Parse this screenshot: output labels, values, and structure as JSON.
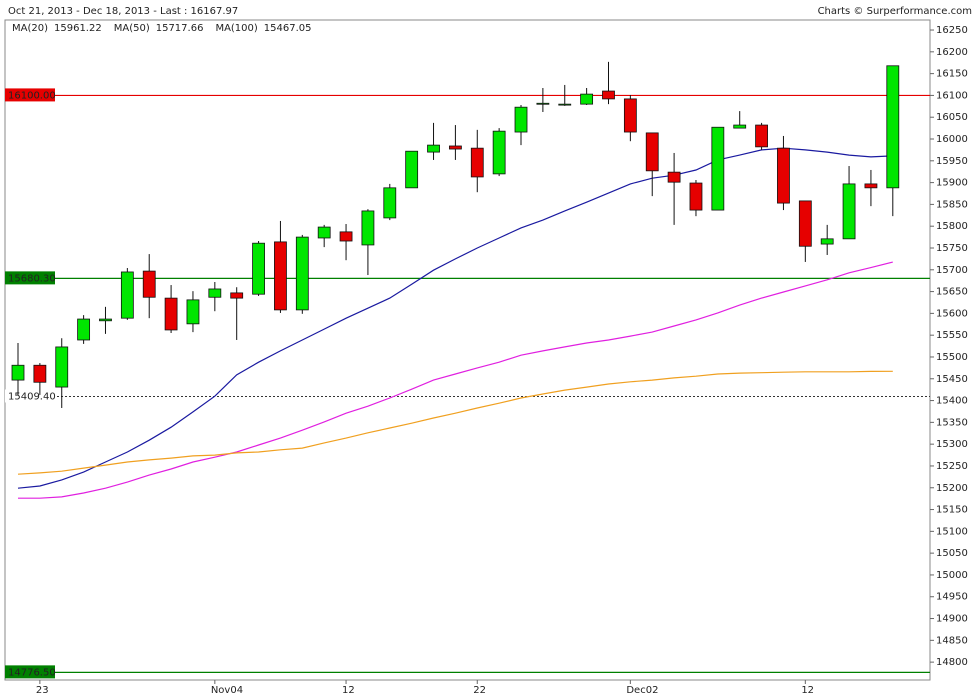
{
  "chart_data": {
    "type": "candlestick",
    "title": "Oct 21, 2013 - Dec 18, 2013 - Last : 16167.97",
    "subtitle": "Charts © Surperformance.com",
    "categories": [
      null,
      "23",
      null,
      null,
      null,
      null,
      null,
      null,
      null,
      "Nov04",
      null,
      null,
      null,
      null,
      null,
      "12",
      null,
      null,
      null,
      null,
      null,
      "22",
      null,
      null,
      null,
      null,
      null,
      null,
      "Dec02",
      null,
      null,
      null,
      null,
      null,
      null,
      null,
      "12",
      null,
      null,
      null,
      null
    ],
    "open": [
      15447,
      15481,
      15431,
      15539,
      15583,
      15589,
      15697,
      15635,
      15576,
      15637,
      15647,
      15644,
      15764,
      15608,
      15773,
      15787,
      15757,
      15819,
      15888,
      15970,
      15984,
      15979,
      15920,
      16016,
      16080,
      16078,
      16080,
      16110,
      16092,
      16014,
      15924,
      15899,
      15837,
      16025,
      16032,
      15979,
      15858,
      15759,
      15771,
      15897,
      15888
    ],
    "high": [
      15532,
      15486,
      15543,
      15596,
      15615,
      15704,
      15736,
      15665,
      15651,
      15672,
      15660,
      15766,
      15812,
      15780,
      15803,
      15805,
      15839,
      15897,
      15972,
      16037,
      16032,
      16021,
      16025,
      16078,
      16117,
      16124,
      16117,
      16177,
      16101,
      16014,
      15968,
      15906,
      16027,
      16064,
      16037,
      16007,
      15858,
      15803,
      15938,
      15929,
      16167.97
    ],
    "low": [
      15413,
      15413,
      15383,
      15530,
      15553,
      15585,
      15589,
      15555,
      15557,
      15605,
      15539,
      15640,
      15601,
      15599,
      15752,
      15722,
      15688,
      15814,
      15888,
      15952,
      15952,
      15878,
      15915,
      15986,
      16062,
      16076,
      16078,
      16080,
      15995,
      15869,
      15803,
      15823,
      15837,
      16025,
      15975,
      15837,
      15718,
      15734,
      15771,
      15846,
      15823
    ],
    "close": [
      15481,
      15442,
      15523,
      15587,
      15587,
      15695,
      15637,
      15562,
      15631,
      15656,
      15635,
      15761,
      15608,
      15775,
      15798,
      15766,
      15835,
      15888,
      15972,
      15986,
      15977,
      15913,
      16018,
      16073,
      16082,
      16080,
      16103,
      16092,
      16016,
      15927,
      15901,
      15837,
      16027,
      16032,
      15982,
      15853,
      15754,
      15771,
      15897,
      15888,
      16167.97
    ],
    "up_color": "#00e600",
    "down_color": "#e60000",
    "series": [
      {
        "name": "MA(20)",
        "color": "#1a1aa0",
        "values": [
          15199,
          15204,
          15218,
          15236,
          15259,
          15282,
          15309,
          15339,
          15374,
          15410,
          15459,
          15488,
          15514,
          15539,
          15564,
          15589,
          15612,
          15635,
          15667,
          15699,
          15725,
          15750,
          15773,
          15796,
          15814,
          15835,
          15855,
          15876,
          15897,
          15910,
          15917,
          15929,
          15952,
          15963,
          15975,
          15979,
          15975,
          15970,
          15963,
          15959,
          15961.22
        ]
      },
      {
        "name": "MA(50)",
        "color": "#e020e0",
        "values": [
          15176,
          15176,
          15179,
          15188,
          15199,
          15213,
          15229,
          15243,
          15259,
          15270,
          15282,
          15298,
          15314,
          15332,
          15351,
          15371,
          15387,
          15406,
          15426,
          15447,
          15461,
          15475,
          15488,
          15504,
          15514,
          15523,
          15532,
          15539,
          15548,
          15557,
          15571,
          15585,
          15601,
          15619,
          15635,
          15649,
          15663,
          15677,
          15693,
          15705,
          15717.66
        ]
      },
      {
        "name": "MA(100)",
        "color": "#f0a020",
        "values": [
          15231,
          15234,
          15238,
          15245,
          15252,
          15259,
          15264,
          15268,
          15273,
          15275,
          15280,
          15282,
          15287,
          15291,
          15303,
          15314,
          15326,
          15337,
          15348,
          15360,
          15371,
          15383,
          15394,
          15406,
          15415,
          15424,
          15431,
          15438,
          15443,
          15447,
          15452,
          15456,
          15461,
          15463,
          15464,
          15465,
          15466,
          15466,
          15466,
          15467,
          15467.05
        ]
      }
    ],
    "levels": [
      {
        "value": 16100,
        "label": "16100.00",
        "color": "#e60000",
        "style": "solid"
      },
      {
        "value": 15680.3,
        "label": "15680.30",
        "color": "#008000",
        "style": "solid"
      },
      {
        "value": 15409.4,
        "label": "15409.40",
        "color": "#333333",
        "style": "dotted"
      },
      {
        "value": 14776.5,
        "label": "14776.50",
        "color": "#008000",
        "style": "solid"
      }
    ],
    "ylim": [
      14759,
      16273
    ],
    "yticks": [
      16250,
      16200,
      16150,
      16100,
      16050,
      16000,
      15950,
      15900,
      15850,
      15800,
      15750,
      15700,
      15650,
      15600,
      15550,
      15500,
      15450,
      15400,
      15350,
      15300,
      15250,
      15200,
      15150,
      15100,
      15050,
      15000,
      14950,
      14900,
      14850,
      14800
    ]
  }
}
